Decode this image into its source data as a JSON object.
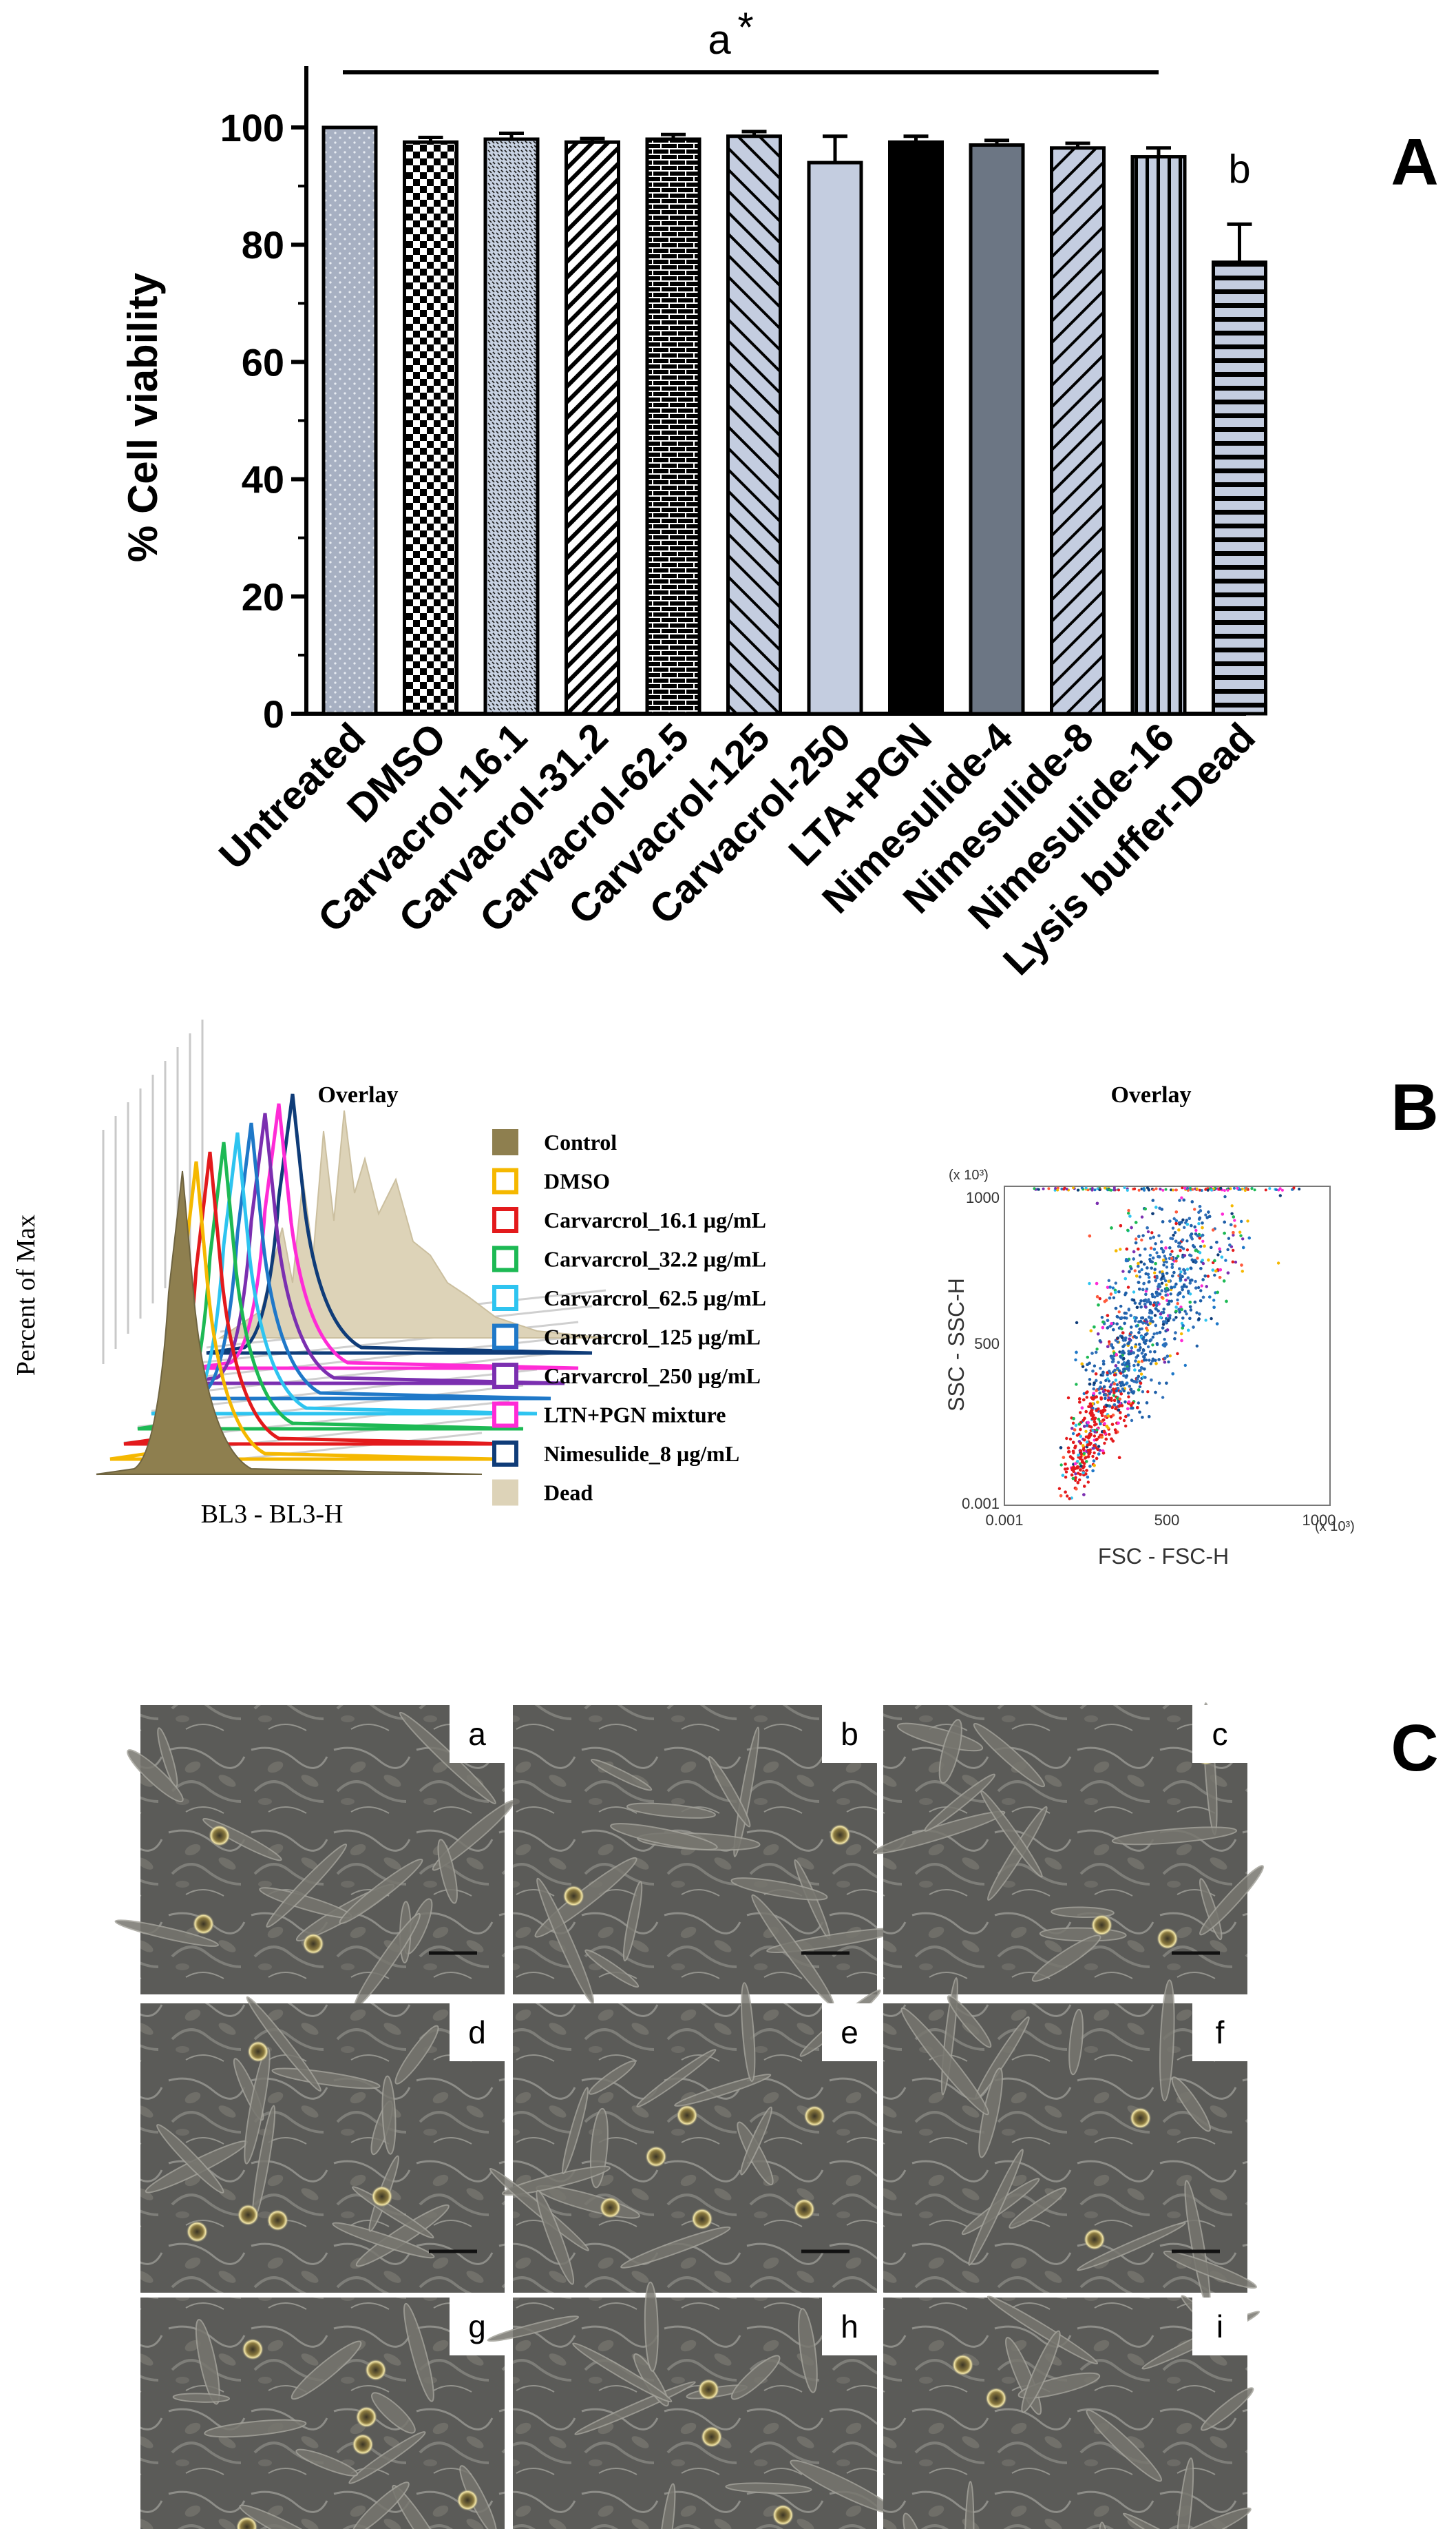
{
  "panel_labels": {
    "a": "A",
    "b": "B",
    "c": "C"
  },
  "chart_data": [
    {
      "type": "bar",
      "panel": "A",
      "title": "",
      "xlabel": "",
      "ylabel": "% Cell viability",
      "ylim": [
        0,
        110
      ],
      "yticks": [
        0,
        20,
        40,
        60,
        80,
        100
      ],
      "ytick_labels": [
        "0",
        "20",
        "40",
        "60",
        "80",
        "100"
      ],
      "categories": [
        "Untreated",
        "DMSO",
        "Carvacrol-16.1",
        "Carvacrol-31.2",
        "Carvacrol-62.5",
        "Carvacrol-125",
        "Carvacrol-250",
        "LTA+PGN",
        "Nimesulide-4",
        "Nimesulide-8",
        "Nimesulide-16",
        "Lysis buffer-Dead"
      ],
      "values": [
        100,
        97.5,
        98,
        97.5,
        98,
        98.5,
        94,
        97.5,
        97,
        96.5,
        95,
        77
      ],
      "errors": [
        0,
        0.8,
        1,
        0.6,
        0.8,
        0.8,
        4.5,
        1,
        0.8,
        0.8,
        1.5,
        6.5
      ],
      "fills": [
        "dots",
        "checker",
        "speckle",
        "diag-fwd",
        "brick",
        "diag-back",
        "plain-light",
        "black",
        "dark-grey",
        "diag-fwd-light",
        "vertical",
        "horizontal"
      ],
      "annotations": {
        "group_a": "a",
        "asterisk": "*",
        "group_b": "b"
      }
    },
    {
      "type": "histogram-overlay",
      "panel": "B-left",
      "title": "Overlay",
      "ylabel": "Percent of Max",
      "xlabel": "BL3 - BL3-H",
      "legend": [
        {
          "label": "Control",
          "color": "#8e7f4f",
          "filled": true
        },
        {
          "label": "DMSO",
          "color": "#f5b800",
          "filled": false
        },
        {
          "label": "Carvarcrol_16.1 µg/mL",
          "color": "#e31a1c",
          "filled": false
        },
        {
          "label": "Carvarcrol_32.2 µg/mL",
          "color": "#1db954",
          "filled": false
        },
        {
          "label": "Carvarcrol_62.5 µg/mL",
          "color": "#2ec4f0",
          "filled": false
        },
        {
          "label": "Carvarcrol_125 µg/mL",
          "color": "#1f78c8",
          "filled": false
        },
        {
          "label": "Carvarcrol_250 µg/mL",
          "color": "#7b2fb0",
          "filled": false
        },
        {
          "label": "LTN+PGN mixture",
          "color": "#ff2bd6",
          "filled": false
        },
        {
          "label": "Nimesulide_8 µg/mL",
          "color": "#0f3c78",
          "filled": false
        },
        {
          "label": "Dead",
          "color": "#ddd3b8",
          "filled": true
        }
      ]
    },
    {
      "type": "scatter",
      "panel": "B-right",
      "title": "Overlay",
      "xlabel": "FSC - FSC-H",
      "ylabel": "SSC - SSC-H",
      "xtick_labels": [
        "0.001",
        "500",
        "1000"
      ],
      "ytick_labels": [
        "0.001",
        "500",
        "1000"
      ],
      "x_multiplier": "(x 10³)",
      "y_multiplier": "(x 10³)"
    }
  ],
  "micrographs": [
    "a",
    "b",
    "c",
    "d",
    "e",
    "f",
    "g",
    "h",
    "i"
  ]
}
